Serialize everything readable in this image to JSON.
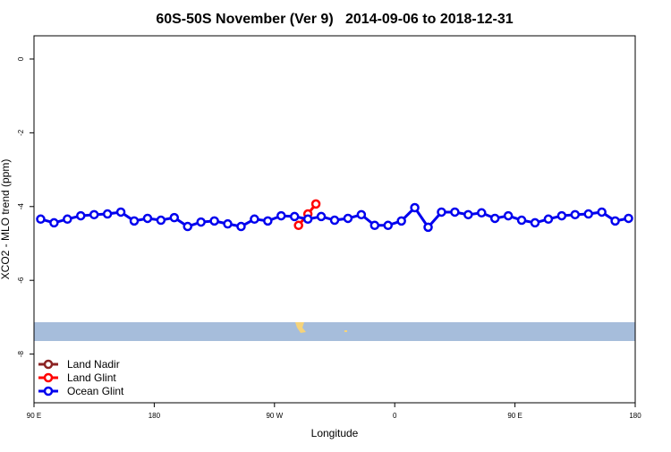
{
  "chart_data": {
    "type": "line",
    "title": "60S-50S November (Ver 9)   2014-09-06 to 2018-12-31",
    "xlabel": "Longitude",
    "ylabel": "XCO2 - MLO trend (ppm)",
    "xlim": [
      90,
      540
    ],
    "xticks": [
      {
        "value": 90,
        "label": "90 E"
      },
      {
        "value": 180,
        "label": "180"
      },
      {
        "value": 270,
        "label": "90 W"
      },
      {
        "value": 360,
        "label": "0"
      },
      {
        "value": 450,
        "label": "90 E"
      },
      {
        "value": 540,
        "label": "180"
      }
    ],
    "ylim": [
      -9.32,
      0.63
    ],
    "yticks": [
      0,
      -2,
      -4,
      -6,
      -8
    ],
    "legend": "bottom-left",
    "series": [
      {
        "name": "Land Nadir",
        "color": "#8b2323",
        "x": [],
        "values": []
      },
      {
        "name": "Land Glint",
        "color": "#ff0000",
        "x": [
          288,
          295,
          301
        ],
        "values": [
          -4.51,
          -4.2,
          -3.93
        ]
      },
      {
        "name": "Ocean Glint",
        "color": "#0000ee",
        "x": [
          95,
          105,
          115,
          125,
          135,
          145,
          155,
          165,
          175,
          185,
          195,
          205,
          215,
          225,
          235,
          245,
          255,
          265,
          275,
          285,
          295,
          305,
          315,
          325,
          335,
          345,
          355,
          365,
          375,
          385,
          395,
          405,
          415,
          425,
          435,
          445,
          455,
          465,
          475,
          485,
          495,
          505,
          515,
          525,
          535
        ],
        "values": [
          -4.34,
          -4.44,
          -4.34,
          -4.25,
          -4.22,
          -4.2,
          -4.15,
          -4.39,
          -4.32,
          -4.37,
          -4.3,
          -4.54,
          -4.42,
          -4.39,
          -4.47,
          -4.54,
          -4.34,
          -4.39,
          -4.25,
          -4.27,
          -4.34,
          -4.27,
          -4.37,
          -4.32,
          -4.22,
          -4.51,
          -4.51,
          -4.39,
          -4.03,
          -4.56,
          -4.15,
          -4.15,
          -4.22,
          -4.17,
          -4.32,
          -4.25,
          -4.37,
          -4.44,
          -4.34,
          -4.25,
          -4.22,
          -4.2,
          -4.15,
          -4.39,
          -4.32
        ]
      }
    ]
  }
}
